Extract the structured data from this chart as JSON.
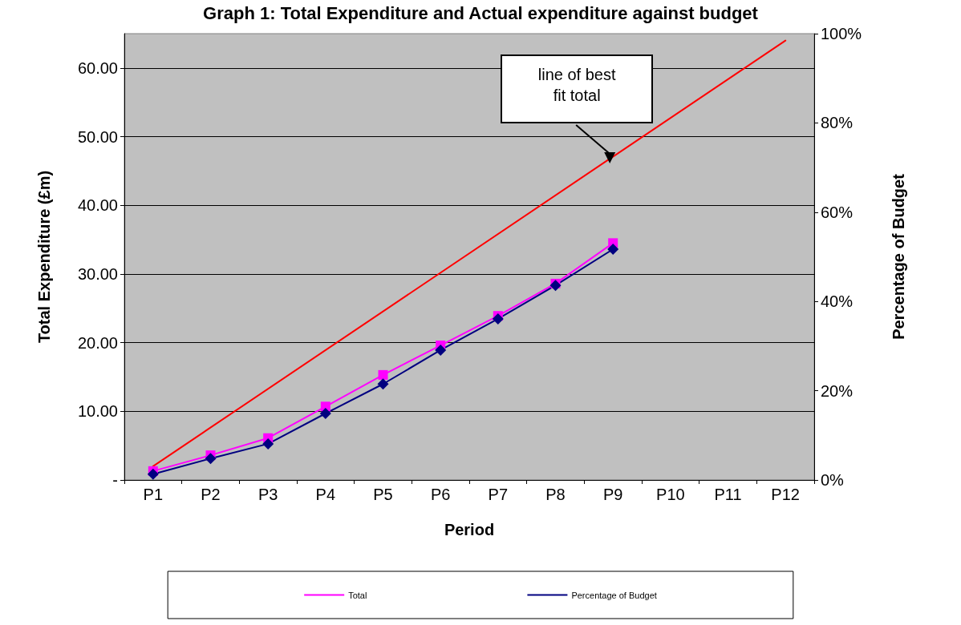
{
  "chart_data": {
    "type": "line",
    "title": "Graph 1: Total Expenditure and Actual expenditure against budget",
    "xlabel": "Period",
    "ylabel": "Total Expenditure (£m)",
    "y2label": "Percentage of Budget",
    "categories": [
      "P1",
      "P2",
      "P3",
      "P4",
      "P5",
      "P6",
      "P7",
      "P8",
      "P9",
      "P10",
      "P11",
      "P12"
    ],
    "series": [
      {
        "name": "Total",
        "color": "#ff00ff",
        "marker": "square",
        "values": [
          1.3,
          3.6,
          6.1,
          10.7,
          15.3,
          19.6,
          23.9,
          28.6,
          34.5,
          null,
          null,
          null
        ]
      },
      {
        "name": "Percentage of Budget",
        "color": "#000080",
        "marker": "diamond",
        "axis": "y2",
        "values": [
          1.3,
          4.8,
          8.1,
          14.9,
          21.5,
          29.1,
          36.1,
          43.6,
          51.7,
          null,
          null,
          null
        ]
      },
      {
        "type": "line",
        "color": "#ff0000",
        "marker": "none",
        "x": [
          "P1",
          "P12"
        ],
        "values": [
          2.0,
          64.0
        ]
      }
    ],
    "ylim": [
      0,
      65
    ],
    "yticks": [
      {
        "value": 0,
        "label": "-"
      },
      {
        "value": 10,
        "label": "10.00"
      },
      {
        "value": 20,
        "label": "20.00"
      },
      {
        "value": 30,
        "label": "30.00"
      },
      {
        "value": 40,
        "label": "40.00"
      },
      {
        "value": 50,
        "label": "50.00"
      },
      {
        "value": 60,
        "label": "60.00"
      }
    ],
    "y2lim": [
      0,
      100
    ],
    "y2ticks": [
      {
        "value": 0,
        "label": "0%"
      },
      {
        "value": 20,
        "label": "20%"
      },
      {
        "value": 40,
        "label": "40%"
      },
      {
        "value": 60,
        "label": "60%"
      },
      {
        "value": 80,
        "label": "80%"
      },
      {
        "value": 100,
        "label": "100%"
      }
    ],
    "annotations": [
      "line of best\nfit total"
    ],
    "grid": "y",
    "legend": "bottom",
    "line_style": "solid"
  }
}
